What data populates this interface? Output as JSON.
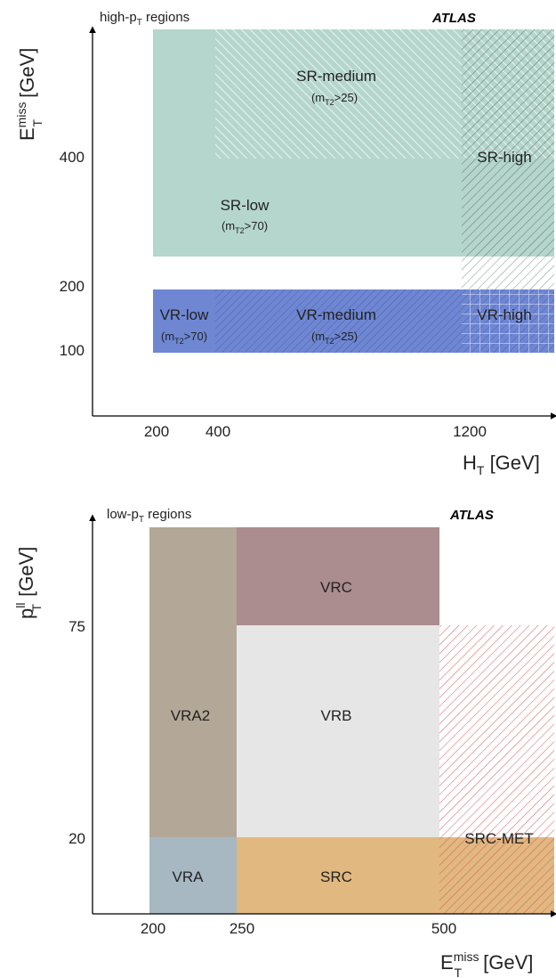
{
  "top_panel": {
    "region_label": "high-p",
    "region_label_sub": "T",
    "region_label_suffix": " regions",
    "atlas": "ATLAS",
    "y_axis": {
      "base": "E",
      "sup": "miss",
      "sub": "T",
      "unit": " [GeV]",
      "ticks": [
        "400",
        "200",
        "100"
      ]
    },
    "x_axis": {
      "base": "H",
      "sub": "T",
      "unit": " [GeV]",
      "ticks": [
        "200",
        "400",
        "1200"
      ]
    },
    "regions": {
      "sr_medium": {
        "name": "SR-medium",
        "cut_pre": "(m",
        "cut_sub": "T2",
        "cut_post": ">25)"
      },
      "sr_low": {
        "name": "SR-low",
        "cut_pre": "(m",
        "cut_sub": "T2",
        "cut_post": ">70)"
      },
      "sr_high": {
        "name": "SR-high"
      },
      "vr_low": {
        "name": "VR-low",
        "cut_pre": "(m",
        "cut_sub": "T2",
        "cut_post": ">70)"
      },
      "vr_medium": {
        "name": "VR-medium",
        "cut_pre": "(m",
        "cut_sub": "T2",
        "cut_post": ">25)"
      },
      "vr_high": {
        "name": "VR-high"
      }
    },
    "colors": {
      "sr": "#b5d6cc",
      "vr": "#6f87d2",
      "hatch_light": "#e4f1ec",
      "hatch_dark": "#6f7f78"
    }
  },
  "bottom_panel": {
    "region_label": "low-p",
    "region_label_sub": "T",
    "region_label_suffix": " regions",
    "atlas": "ATLAS",
    "y_axis": {
      "base": "p",
      "sup": "ll",
      "sub": "T",
      "unit": " [GeV]",
      "ticks": [
        "75",
        "20"
      ]
    },
    "x_axis": {
      "base": "E",
      "sup": "miss",
      "sub": "T",
      "unit": " [GeV]",
      "ticks": [
        "200",
        "250",
        "500"
      ]
    },
    "regions": {
      "vrc": {
        "name": "VRC"
      },
      "vra2": {
        "name": "VRA2"
      },
      "vrb": {
        "name": "VRB"
      },
      "vra": {
        "name": "VRA"
      },
      "src": {
        "name": "SRC"
      },
      "src_met": {
        "name": "SRC-MET"
      }
    },
    "colors": {
      "vrc": "#ab8c8f",
      "vra2": "#b3a898",
      "vrb": "#e6e6e6",
      "vra": "#a8b8c3",
      "src": "#e0b880",
      "src_met_hatch": "#d65a5a"
    }
  }
}
